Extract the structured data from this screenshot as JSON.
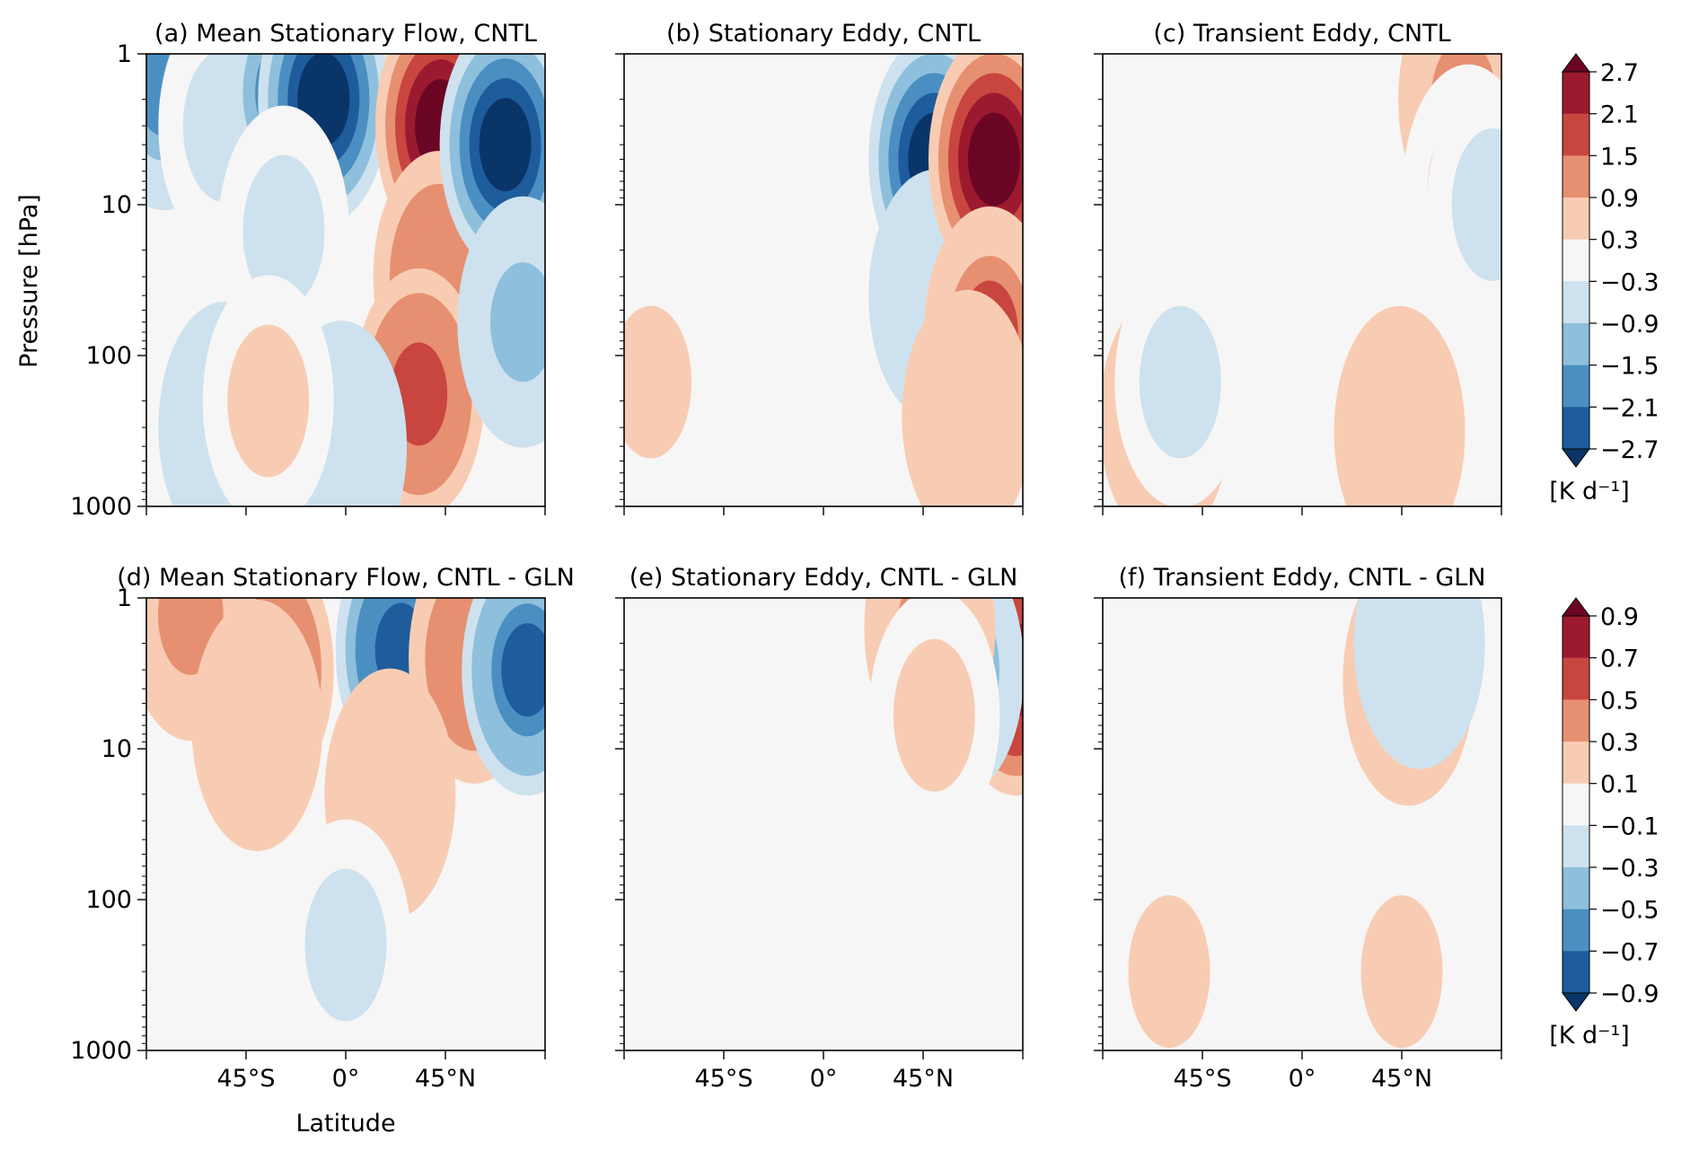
{
  "chart_data": [
    {
      "type": "heatmap",
      "panel": "a",
      "title": "(a) Mean Stationary Flow, CNTL",
      "ylabel": "Pressure [hPa]",
      "xlabel": "",
      "yscale": "log",
      "ylim": [
        1000,
        1
      ],
      "yticks": [
        "1",
        "10",
        "100",
        "1000"
      ],
      "xticks": [],
      "colorbar": "top",
      "features": [
        {
          "lat": -82,
          "p": 1.6,
          "value": -1.6
        },
        {
          "lat": -55,
          "p": 3,
          "value": -0.6
        },
        {
          "lat": -28,
          "p": 1.8,
          "value": -1.8
        },
        {
          "lat": -10,
          "p": 2.0,
          "value": -2.7
        },
        {
          "lat": -28,
          "p": 15,
          "value": -0.6
        },
        {
          "lat": 43,
          "p": 3,
          "value": 2.7
        },
        {
          "lat": 42,
          "p": 30,
          "value": 1.5
        },
        {
          "lat": 33,
          "p": 180,
          "value": 1.8
        },
        {
          "lat": 72,
          "p": 4,
          "value": -2.7
        },
        {
          "lat": 80,
          "p": 60,
          "value": -1.0
        },
        {
          "lat": -55,
          "p": 300,
          "value": -0.9
        },
        {
          "lat": -2,
          "p": 400,
          "value": -0.9
        },
        {
          "lat": -35,
          "p": 200,
          "value": 0.5
        }
      ]
    },
    {
      "type": "heatmap",
      "panel": "b",
      "title": "(b) Stationary Eddy, CNTL",
      "yscale": "log",
      "ylim": [
        1000,
        1
      ],
      "features": [
        {
          "lat": 50,
          "p": 5,
          "value": -2.7
        },
        {
          "lat": 50,
          "p": 40,
          "value": -0.9
        },
        {
          "lat": 77,
          "p": 5,
          "value": 2.7
        },
        {
          "lat": 75,
          "p": 70,
          "value": 1.6
        },
        {
          "lat": 65,
          "p": 250,
          "value": 0.6
        },
        {
          "lat": -78,
          "p": 150,
          "value": 0.4
        }
      ]
    },
    {
      "type": "heatmap",
      "panel": "c",
      "title": "(c) Transient Eddy, CNTL",
      "yscale": "log",
      "ylim": [
        1000,
        1
      ],
      "features": [
        {
          "lat": 73,
          "p": 2,
          "value": 1.1
        },
        {
          "lat": 75,
          "p": 8,
          "value": 0.5
        },
        {
          "lat": -62,
          "p": 260,
          "value": 0.9
        },
        {
          "lat": 44,
          "p": 320,
          "value": 0.8
        },
        {
          "lat": 86,
          "p": 10,
          "value": -0.6
        },
        {
          "lat": -55,
          "p": 150,
          "value": -0.4
        }
      ]
    },
    {
      "type": "heatmap",
      "panel": "d",
      "title": "(d) Mean Stationary Flow, CNTL - GLN",
      "yscale": "log",
      "ylim": [
        1000,
        1
      ],
      "xlabel": "Latitude",
      "xticks": [
        "45°S",
        "0°",
        "45°N"
      ],
      "colorbar": "bottom",
      "features": [
        {
          "lat": -35,
          "p": 3,
          "value": 0.6
        },
        {
          "lat": -70,
          "p": 1.3,
          "value": 0.4
        },
        {
          "lat": -40,
          "p": 7,
          "value": 0.2
        },
        {
          "lat": 25,
          "p": 2.2,
          "value": -0.85
        },
        {
          "lat": 58,
          "p": 2.5,
          "value": 0.5
        },
        {
          "lat": 82,
          "p": 3,
          "value": -0.8
        },
        {
          "lat": 20,
          "p": 20,
          "value": 0.2
        },
        {
          "lat": 0,
          "p": 200,
          "value": -0.15
        }
      ]
    },
    {
      "type": "heatmap",
      "panel": "e",
      "title": "(e) Stationary Eddy, CNTL - GLN",
      "yscale": "log",
      "ylim": [
        1000,
        1
      ],
      "xticks": [
        "45°S",
        "0°",
        "45°N"
      ],
      "features": [
        {
          "lat": 87,
          "p": 3,
          "value": 0.85
        },
        {
          "lat": 61,
          "p": 3,
          "value": -0.55
        },
        {
          "lat": 48,
          "p": 1.6,
          "value": 0.4
        },
        {
          "lat": 50,
          "p": 6,
          "value": 0.15
        }
      ]
    },
    {
      "type": "heatmap",
      "panel": "f",
      "title": "(f) Transient Eddy, CNTL - GLN",
      "yscale": "log",
      "ylim": [
        1000,
        1
      ],
      "xticks": [
        "45°S",
        "0°",
        "45°N"
      ],
      "features": [
        {
          "lat": 48,
          "p": 3.5,
          "value": 0.4
        },
        {
          "lat": 53,
          "p": 2,
          "value": -0.2
        },
        {
          "lat": -60,
          "p": 300,
          "value": 0.15
        },
        {
          "lat": 45,
          "p": 300,
          "value": 0.15
        }
      ]
    }
  ],
  "colorbars": {
    "top": {
      "ticks": [
        "2.7",
        "2.1",
        "1.5",
        "0.9",
        "0.3",
        "−0.3",
        "−0.9",
        "−1.5",
        "−2.1",
        "−2.7"
      ],
      "unit": "[K d⁻¹]"
    },
    "bottom": {
      "ticks": [
        "0.9",
        "0.7",
        "0.5",
        "0.3",
        "0.1",
        "−0.1",
        "−0.3",
        "−0.5",
        "−0.7",
        "−0.9"
      ],
      "unit": "[K d⁻¹]"
    },
    "colors": [
      "#6a0624",
      "#9b1a2f",
      "#c8463f",
      "#e78f71",
      "#f8ccb3",
      "#f7f6f6",
      "#cde2ee",
      "#8ebfdc",
      "#4b8fc2",
      "#1e5c9c",
      "#0a3569"
    ]
  }
}
